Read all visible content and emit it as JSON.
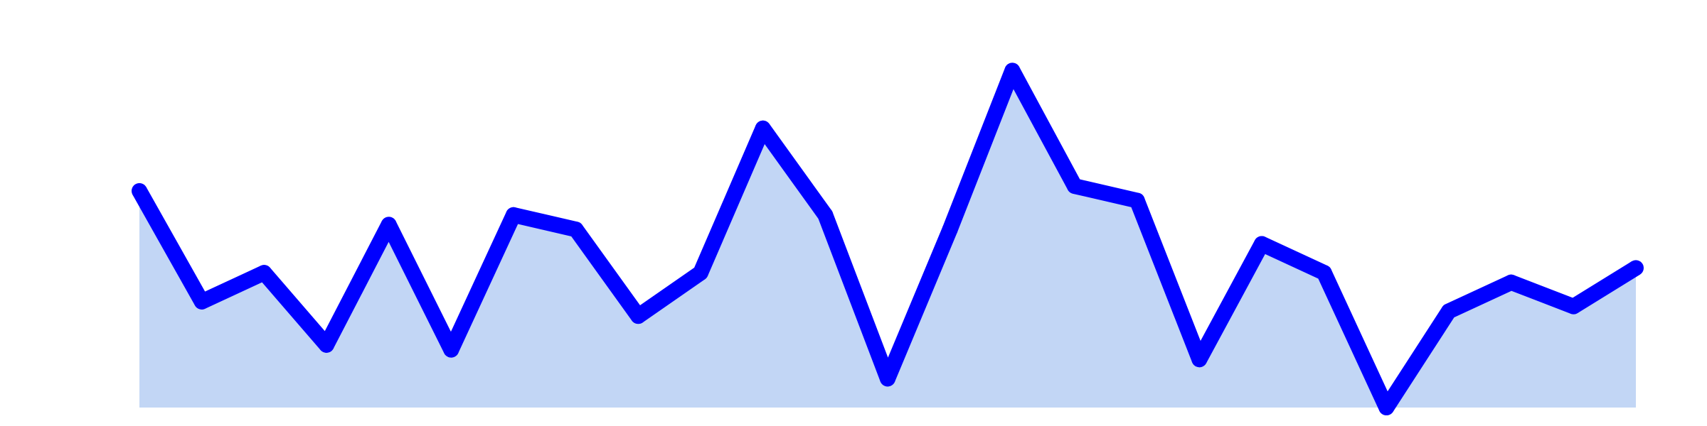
{
  "chart_data": {
    "type": "area",
    "title": "",
    "xlabel": "",
    "ylabel": "",
    "x": [
      1,
      2,
      3,
      4,
      5,
      6,
      7,
      8,
      9,
      10,
      11,
      12,
      13,
      14,
      15,
      16,
      17,
      18,
      19,
      20,
      21,
      22,
      23,
      24,
      25
    ],
    "series": [
      {
        "values": [
          45,
          22,
          28,
          13,
          38,
          12,
          40,
          37,
          19,
          28,
          58,
          40,
          6,
          37,
          70,
          46,
          43,
          10,
          34,
          28,
          0,
          20,
          26,
          21,
          29
        ],
        "line_color": "#0000ff",
        "fill_color": "#c2d6f5"
      }
    ],
    "ylim": [
      0,
      200
    ],
    "grid": false,
    "legend": "none"
  }
}
